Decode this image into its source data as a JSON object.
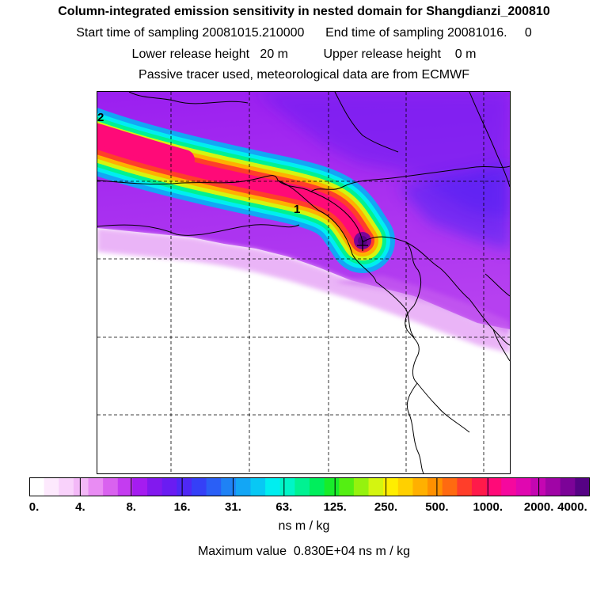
{
  "header": {
    "title": "Column-integrated emission sensitivity in nested domain for Shangdianzi_200810",
    "line1": "Start time of sampling 20081015.210000      End time of sampling 20081016.     0",
    "line2": "Lower release height   20 m          Upper release height    0 m",
    "line3": "Passive tracer used, meteorological data are from ECMWF"
  },
  "map": {
    "contour_labels": [
      "2",
      "1"
    ],
    "receptor_marker": "+"
  },
  "colorbar": {
    "tick_labels": [
      "0.",
      "4.",
      "8.",
      "16.",
      "31.",
      "63.",
      "125.",
      "250.",
      "500.",
      "1000.",
      "2000.",
      "4000."
    ],
    "colors": [
      "#ffffff",
      "#fde9fd",
      "#f9d2fb",
      "#f3b8f7",
      "#e98cf3",
      "#d962ef",
      "#c43cf0",
      "#a51cf0",
      "#8219ee",
      "#6a1cf2",
      "#4f28f5",
      "#3540f7",
      "#2a5ff6",
      "#1f82f5",
      "#13a6f5",
      "#08c8f4",
      "#00eef0",
      "#00f5c6",
      "#00f292",
      "#00ee5c",
      "#18ec2a",
      "#54ef12",
      "#95f20e",
      "#d4f510",
      "#ffee00",
      "#ffd000",
      "#ffb000",
      "#ff9000",
      "#ff6a10",
      "#ff3e2a",
      "#ff1a4a",
      "#ff0a78",
      "#f5089e",
      "#e007b0",
      "#c406b2",
      "#a005a6",
      "#7c0398",
      "#560285"
    ],
    "units": "ns m / kg",
    "max_value_text": "Maximum value  0.830E+04 ns m / kg"
  }
}
